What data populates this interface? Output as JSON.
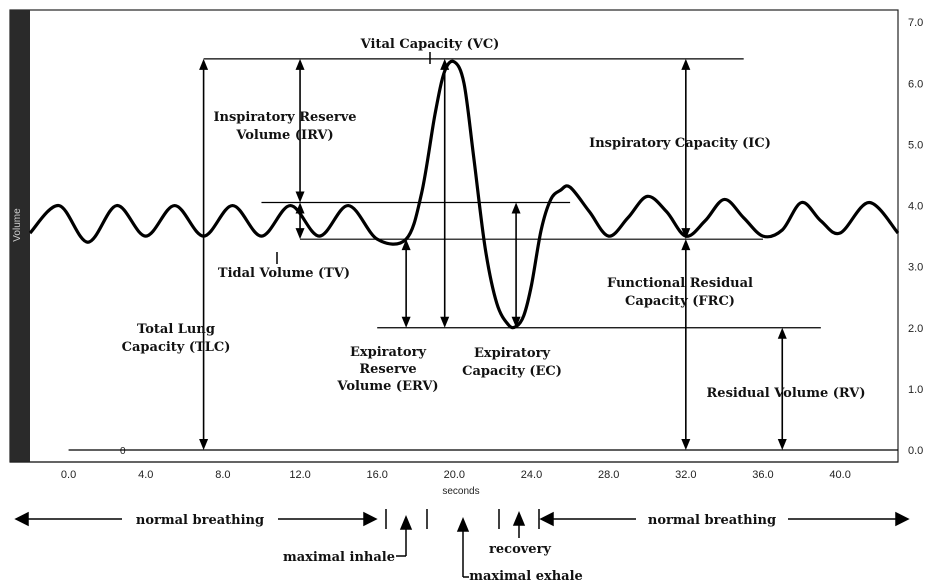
{
  "chart_data": {
    "type": "line",
    "xlabel": "seconds",
    "ylabel": "Volume",
    "xlim": [
      -2,
      43
    ],
    "ylim": [
      0,
      7.2
    ],
    "x_ticks": [
      "0.0",
      "4.0",
      "8.0",
      "12.0",
      "16.0",
      "20.0",
      "24.0",
      "28.0",
      "32.0",
      "36.0",
      "40.0"
    ],
    "y_ticks": [
      "0.0",
      "1.0",
      "2.0",
      "3.0",
      "4.0",
      "5.0",
      "6.0",
      "7.0"
    ],
    "zero_label": "0",
    "series": [
      {
        "x": [
          -2,
          -0.5,
          1.0,
          2.5,
          4.0,
          5.5,
          7.0,
          8.5,
          10.0,
          11.5,
          13.0,
          14.5,
          16.0,
          17.5,
          18.3,
          19.0,
          19.5,
          20.0,
          20.5,
          21.0,
          21.6,
          22.2,
          22.8,
          23.2,
          23.6,
          24.0,
          24.5,
          25.0,
          25.5,
          26.0,
          27.0,
          28.0,
          29.0,
          30.0,
          31.0,
          32.0,
          33.0,
          34.0,
          35.0,
          36.0,
          37.0,
          38.0,
          39.0,
          40.0,
          41.5,
          43.0
        ],
        "y": [
          3.55,
          4.0,
          3.4,
          4.0,
          3.5,
          4.0,
          3.5,
          4.0,
          3.5,
          4.0,
          3.5,
          4.0,
          3.45,
          3.45,
          4.2,
          5.5,
          6.2,
          6.35,
          6.0,
          4.8,
          3.3,
          2.4,
          2.05,
          2.02,
          2.2,
          2.7,
          3.6,
          4.1,
          4.25,
          4.3,
          3.9,
          3.5,
          3.8,
          4.15,
          3.9,
          3.5,
          3.75,
          4.1,
          3.8,
          3.5,
          3.6,
          4.05,
          3.75,
          3.55,
          4.05,
          3.55
        ]
      }
    ],
    "reference_lines": [
      {
        "y": 6.4,
        "x": [
          7.0,
          35.0
        ]
      },
      {
        "y": 4.05,
        "x": [
          10.0,
          26.0
        ]
      },
      {
        "y": 3.45,
        "x": [
          12.0,
          36.0
        ]
      },
      {
        "y": 2.0,
        "x": [
          16.0,
          39.0
        ]
      },
      {
        "y": 0.0,
        "x": [
          0.0,
          43.0
        ]
      }
    ],
    "arrows": [
      {
        "x": 7.0,
        "y": [
          0.0,
          6.4
        ]
      },
      {
        "x": 12.0,
        "y": [
          4.05,
          6.4
        ]
      },
      {
        "x": 12.0,
        "y": [
          3.45,
          4.05
        ]
      },
      {
        "x": 17.5,
        "y": [
          2.0,
          3.45
        ]
      },
      {
        "x": 19.5,
        "y": [
          2.0,
          6.4
        ]
      },
      {
        "x": 23.2,
        "y": [
          2.0,
          4.05
        ]
      },
      {
        "x": 32.0,
        "y": [
          3.45,
          6.4
        ]
      },
      {
        "x": 32.0,
        "y": [
          0.0,
          3.45
        ]
      },
      {
        "x": 37.0,
        "y": [
          0.0,
          2.0
        ]
      }
    ],
    "annotations": [
      {
        "lines": [
          "Vital Capacity (VC)"
        ]
      },
      {
        "lines": [
          "Inspiratory Reserve",
          "Volume (IRV)"
        ]
      },
      {
        "lines": [
          "Inspiratory Capacity (IC)"
        ]
      },
      {
        "lines": [
          "Tidal Volume (TV)"
        ]
      },
      {
        "lines": [
          "Functional Residual",
          "Capacity (FRC)"
        ]
      },
      {
        "lines": [
          "Total Lung",
          "Capacity (TLC)"
        ]
      },
      {
        "lines": [
          "Expiratory",
          "Reserve",
          "Volume (ERV)"
        ]
      },
      {
        "lines": [
          "Expiratory",
          "Capacity (EC)"
        ]
      },
      {
        "lines": [
          "Residual Volume (RV)"
        ]
      }
    ],
    "phases": [
      {
        "label": "normal breathing"
      },
      {
        "label": "maximal inhale"
      },
      {
        "label": "recovery"
      },
      {
        "label": "maximal exhale"
      },
      {
        "label": "normal breathing"
      }
    ]
  }
}
